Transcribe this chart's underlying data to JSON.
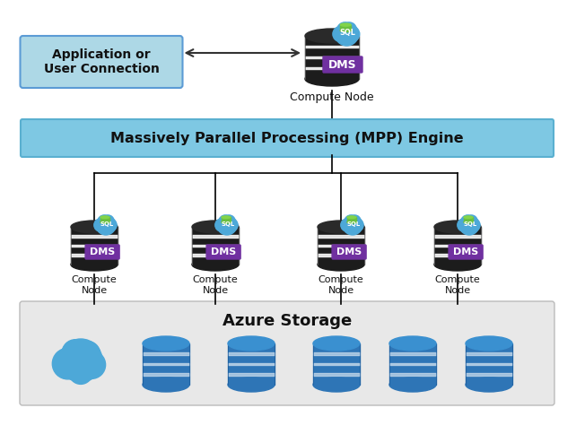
{
  "bg_color": "#ffffff",
  "app_box_color": "#add8e6",
  "app_box_edge_color": "#5b9bd5",
  "mpp_box_color": "#7ec8e3",
  "mpp_box_edge_color": "#5ab0d0",
  "storage_box_color": "#e8e8e8",
  "storage_box_edge_color": "#bbbbbb",
  "dms_color": "#7030a0",
  "sql_cloud_color": "#4da8d8",
  "sql_green_top": "#6abf40",
  "db_dark_color": "#1c1c1c",
  "azure_db_color": "#2e75b6",
  "azure_db_top": "#3a90d0",
  "azure_cloud_color": "#4da8d8",
  "app_text": "Application or\nUser Connection",
  "compute_top_text": "Compute Node",
  "mpp_text": "Massively Parallel Processing (MPP) Engine",
  "compute_nodes": [
    "Compute\nNode",
    "Compute\nNode",
    "Compute\nNode",
    "Compute\nNode"
  ],
  "storage_text": "Azure Storage",
  "figsize": [
    6.42,
    4.84
  ],
  "dpi": 100
}
